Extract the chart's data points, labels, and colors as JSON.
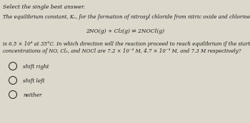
{
  "title": "Select the single best answer.",
  "para1": "The equilibrium constant, Kₑ, for the formation of nitrosyl chloride from nitric oxide and chlorine.",
  "equation": "2NO(g) + Cl₂(g) ⇌ 2NOCl(g)",
  "para2a": "is 6.5 × 10⁴ at 35°C. In which direction will the reaction proceed to reach equilibrium if the starting",
  "para2b": "concentrations of NO, Cl₂, and NOCl are 7.2 × 10⁻³ M, 4.7 × 10⁻⁴ M, and 7.3 M respectively?",
  "options": [
    "shift right",
    "shift left",
    "neither"
  ],
  "bg_color": "#ddd8cc",
  "text_color": "#1a1a1a",
  "title_fontsize": 5.5,
  "body_fontsize": 5.0,
  "eq_fontsize": 5.5,
  "opt_fontsize": 5.2
}
